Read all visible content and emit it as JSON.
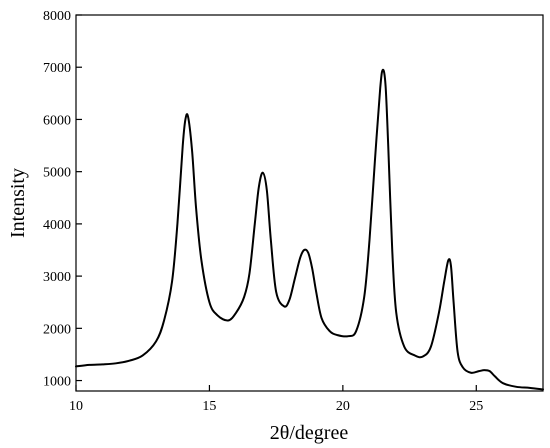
{
  "chart_data": {
    "type": "line",
    "title": "",
    "xlabel": "2θ/degree",
    "ylabel": "Intensity",
    "xlim": [
      10,
      27.5
    ],
    "ylim": [
      800,
      8000
    ],
    "grid": false,
    "x_ticks": [
      10,
      15,
      20,
      25
    ],
    "x_tick_labels": [
      "10",
      "15",
      "20",
      "25"
    ],
    "y_ticks": [
      1000,
      2000,
      3000,
      4000,
      5000,
      6000,
      7000,
      8000
    ],
    "y_tick_labels": [
      "1000",
      "2000",
      "3000",
      "4000",
      "5000",
      "6000",
      "7000",
      "8000"
    ],
    "series": [
      {
        "color": "#000000",
        "x": [
          10,
          10.5,
          11,
          11.5,
          12,
          12.5,
          13,
          13.3,
          13.6,
          13.8,
          14.0,
          14.1,
          14.2,
          14.35,
          14.5,
          14.7,
          15.0,
          15.3,
          15.7,
          16.0,
          16.3,
          16.5,
          16.7,
          16.85,
          17.0,
          17.15,
          17.3,
          17.5,
          17.8,
          18.0,
          18.2,
          18.4,
          18.55,
          18.7,
          18.85,
          19.0,
          19.2,
          19.5,
          19.8,
          20.2,
          20.5,
          20.8,
          21.0,
          21.2,
          21.4,
          21.5,
          21.6,
          21.7,
          21.85,
          22.0,
          22.3,
          22.7,
          23.0,
          23.3,
          23.6,
          23.8,
          23.95,
          24.05,
          24.15,
          24.3,
          24.5,
          24.8,
          25.1,
          25.3,
          25.5,
          25.7,
          26.0,
          26.5,
          27.0,
          27.5
        ],
        "y": [
          1270,
          1300,
          1310,
          1330,
          1380,
          1480,
          1750,
          2150,
          2900,
          4000,
          5500,
          6000,
          6050,
          5400,
          4300,
          3300,
          2500,
          2250,
          2150,
          2300,
          2600,
          3050,
          4000,
          4700,
          4980,
          4650,
          3700,
          2700,
          2420,
          2550,
          2950,
          3350,
          3500,
          3450,
          3150,
          2700,
          2200,
          1950,
          1870,
          1850,
          1950,
          2600,
          3700,
          5200,
          6600,
          6950,
          6650,
          5500,
          3500,
          2300,
          1650,
          1480,
          1460,
          1650,
          2300,
          2900,
          3300,
          3200,
          2500,
          1550,
          1250,
          1150,
          1180,
          1200,
          1180,
          1080,
          950,
          880,
          860,
          830
        ]
      }
    ]
  }
}
